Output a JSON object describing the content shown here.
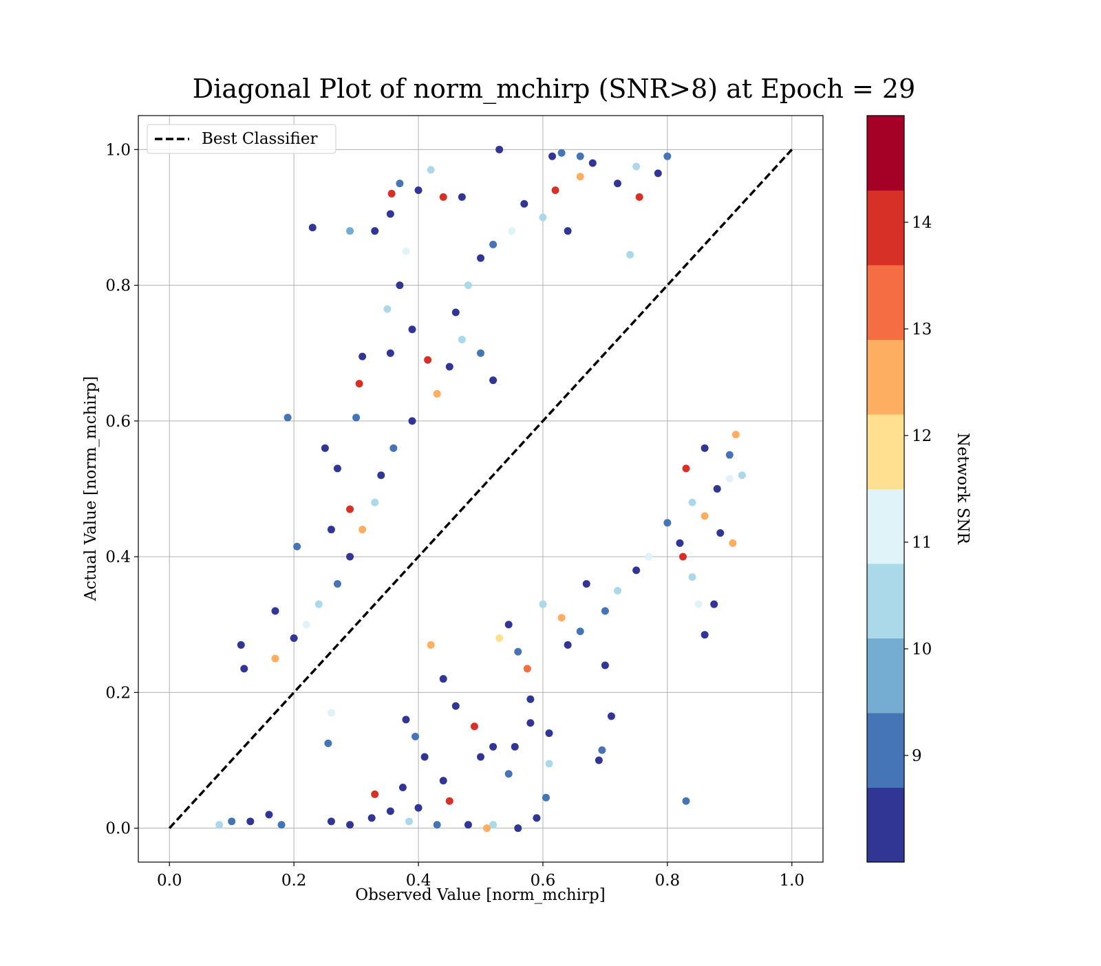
{
  "chart_data": {
    "type": "scatter",
    "title": "Diagonal Plot of norm_mchirp (SNR>8) at Epoch = 29",
    "xlabel": "Observed Value [norm_mchirp]",
    "ylabel": "Actual Value [norm_mchirp]",
    "xlim": [
      -0.05,
      1.05
    ],
    "ylim": [
      -0.05,
      1.05
    ],
    "xticks": [
      0.0,
      0.2,
      0.4,
      0.6,
      0.8,
      1.0
    ],
    "yticks": [
      0.0,
      0.2,
      0.4,
      0.6,
      0.8,
      1.0
    ],
    "xtick_labels": [
      "0.0",
      "0.2",
      "0.4",
      "0.6",
      "0.8",
      "1.0"
    ],
    "ytick_labels": [
      "0.0",
      "0.2",
      "0.4",
      "0.6",
      "0.8",
      "1.0"
    ],
    "grid": true,
    "legend": {
      "position": "top-left",
      "entries": [
        {
          "label": "Best Classifier",
          "style": "dashed",
          "color": "#000000"
        }
      ]
    },
    "reference_line": {
      "name": "Best Classifier",
      "x": [
        0.0,
        1.0
      ],
      "y": [
        0.0,
        1.0
      ],
      "color": "#000000",
      "style": "dashed"
    },
    "colorbar": {
      "label": "Network SNR",
      "range": [
        8,
        15
      ],
      "ticks": [
        9,
        10,
        11,
        12,
        13,
        14
      ],
      "tick_labels": [
        "9",
        "10",
        "11",
        "12",
        "13",
        "14"
      ],
      "bands": [
        {
          "from": 8.0,
          "to": 8.7,
          "color": "#313695"
        },
        {
          "from": 8.7,
          "to": 9.4,
          "color": "#4575b4"
        },
        {
          "from": 9.4,
          "to": 10.1,
          "color": "#74add1"
        },
        {
          "from": 10.1,
          "to": 10.8,
          "color": "#abd9e9"
        },
        {
          "from": 10.8,
          "to": 11.5,
          "color": "#e0f3f8"
        },
        {
          "from": 11.5,
          "to": 12.2,
          "color": "#fee090"
        },
        {
          "from": 12.2,
          "to": 12.9,
          "color": "#fdae61"
        },
        {
          "from": 12.9,
          "to": 13.6,
          "color": "#f46d43"
        },
        {
          "from": 13.6,
          "to": 14.3,
          "color": "#d73027"
        },
        {
          "from": 14.3,
          "to": 15.0,
          "color": "#a50026"
        }
      ]
    },
    "series": [
      {
        "colorby": "Network SNR",
        "points": [
          [
            0.23,
            0.885,
            8.2
          ],
          [
            0.29,
            0.88,
            10.0
          ],
          [
            0.33,
            0.88,
            8.3
          ],
          [
            0.357,
            0.935,
            13.8
          ],
          [
            0.37,
            0.95,
            9.1
          ],
          [
            0.355,
            0.905,
            8.4
          ],
          [
            0.4,
            0.94,
            8.1
          ],
          [
            0.42,
            0.97,
            10.2
          ],
          [
            0.44,
            0.93,
            13.9
          ],
          [
            0.47,
            0.93,
            8.5
          ],
          [
            0.38,
            0.85,
            11.2
          ],
          [
            0.37,
            0.8,
            8.3
          ],
          [
            0.35,
            0.765,
            10.4
          ],
          [
            0.39,
            0.735,
            8.2
          ],
          [
            0.415,
            0.69,
            13.7
          ],
          [
            0.39,
            0.6,
            8.4
          ],
          [
            0.305,
            0.655,
            13.6
          ],
          [
            0.31,
            0.695,
            8.2
          ],
          [
            0.355,
            0.7,
            8.1
          ],
          [
            0.3,
            0.605,
            9.0
          ],
          [
            0.19,
            0.605,
            9.2
          ],
          [
            0.25,
            0.56,
            8.3
          ],
          [
            0.27,
            0.53,
            8.1
          ],
          [
            0.29,
            0.47,
            13.8
          ],
          [
            0.26,
            0.44,
            8.3
          ],
          [
            0.205,
            0.415,
            9.0
          ],
          [
            0.17,
            0.32,
            8.2
          ],
          [
            0.115,
            0.27,
            8.3
          ],
          [
            0.12,
            0.235,
            8.5
          ],
          [
            0.53,
            1.0,
            8.2
          ],
          [
            0.615,
            0.99,
            8.3
          ],
          [
            0.63,
            0.995,
            9.0
          ],
          [
            0.66,
            0.99,
            9.3
          ],
          [
            0.68,
            0.98,
            8.2
          ],
          [
            0.75,
            0.975,
            10.3
          ],
          [
            0.755,
            0.93,
            13.7
          ],
          [
            0.72,
            0.95,
            8.4
          ],
          [
            0.74,
            0.845,
            10.6
          ],
          [
            0.785,
            0.965,
            8.2
          ],
          [
            0.8,
            0.99,
            9.1
          ],
          [
            0.825,
            0.4,
            13.8
          ],
          [
            0.84,
            0.37,
            10.7
          ],
          [
            0.85,
            0.33,
            11.2
          ],
          [
            0.875,
            0.33,
            8.3
          ],
          [
            0.86,
            0.285,
            8.4
          ],
          [
            0.905,
            0.42,
            12.4
          ],
          [
            0.885,
            0.435,
            8.3
          ],
          [
            0.9,
            0.515,
            11.4
          ],
          [
            0.83,
            0.04,
            9.2
          ],
          [
            0.7,
            0.24,
            8.2
          ],
          [
            0.71,
            0.165,
            8.3
          ],
          [
            0.695,
            0.115,
            9.1
          ],
          [
            0.69,
            0.1,
            8.2
          ],
          [
            0.61,
            0.095,
            10.4
          ],
          [
            0.605,
            0.045,
            9.2
          ],
          [
            0.59,
            0.015,
            8.1
          ],
          [
            0.52,
            0.005,
            10.3
          ],
          [
            0.51,
            0.0,
            12.6
          ],
          [
            0.575,
            0.235,
            13.5
          ],
          [
            0.58,
            0.19,
            8.3
          ],
          [
            0.64,
            0.27,
            8.2
          ],
          [
            0.66,
            0.29,
            9.1
          ],
          [
            0.61,
            0.14,
            8.2
          ],
          [
            0.58,
            0.155,
            8.3
          ],
          [
            0.555,
            0.12,
            8.2
          ],
          [
            0.545,
            0.08,
            9.2
          ],
          [
            0.52,
            0.12,
            8.4
          ],
          [
            0.45,
            0.04,
            13.9
          ],
          [
            0.44,
            0.07,
            8.3
          ],
          [
            0.41,
            0.105,
            8.2
          ],
          [
            0.395,
            0.135,
            9.2
          ],
          [
            0.38,
            0.16,
            8.1
          ],
          [
            0.33,
            0.05,
            13.6
          ],
          [
            0.255,
            0.125,
            9.1
          ],
          [
            0.26,
            0.17,
            11.3
          ],
          [
            0.42,
            0.27,
            12.5
          ],
          [
            0.44,
            0.22,
            8.3
          ],
          [
            0.46,
            0.18,
            8.4
          ],
          [
            0.49,
            0.15,
            13.7
          ],
          [
            0.5,
            0.105,
            8.2
          ],
          [
            0.325,
            0.015,
            8.3
          ],
          [
            0.355,
            0.025,
            8.1
          ],
          [
            0.375,
            0.06,
            8.2
          ],
          [
            0.385,
            0.01,
            10.5
          ],
          [
            0.4,
            0.03,
            8.3
          ],
          [
            0.56,
            0.0,
            8.4
          ],
          [
            0.48,
            0.005,
            8.2
          ],
          [
            0.43,
            0.005,
            9.0
          ],
          [
            0.29,
            0.005,
            8.2
          ],
          [
            0.26,
            0.01,
            8.3
          ],
          [
            0.18,
            0.005,
            9.1
          ],
          [
            0.16,
            0.02,
            8.4
          ],
          [
            0.13,
            0.01,
            8.3
          ],
          [
            0.1,
            0.01,
            9.2
          ],
          [
            0.08,
            0.005,
            10.3
          ],
          [
            0.53,
            0.28,
            11.5
          ],
          [
            0.545,
            0.3,
            8.2
          ],
          [
            0.56,
            0.26,
            9.1
          ],
          [
            0.6,
            0.33,
            10.5
          ],
          [
            0.63,
            0.31,
            12.6
          ],
          [
            0.67,
            0.36,
            8.3
          ],
          [
            0.7,
            0.32,
            9.2
          ],
          [
            0.72,
            0.35,
            10.4
          ],
          [
            0.75,
            0.38,
            8.3
          ],
          [
            0.77,
            0.4,
            11.3
          ],
          [
            0.8,
            0.45,
            9.2
          ],
          [
            0.82,
            0.42,
            8.4
          ],
          [
            0.84,
            0.48,
            10.4
          ],
          [
            0.86,
            0.46,
            12.4
          ],
          [
            0.88,
            0.5,
            8.3
          ],
          [
            0.9,
            0.55,
            9.1
          ],
          [
            0.92,
            0.52,
            10.6
          ],
          [
            0.86,
            0.56,
            8.2
          ],
          [
            0.83,
            0.53,
            13.6
          ],
          [
            0.91,
            0.58,
            12.3
          ],
          [
            0.52,
            0.66,
            8.2
          ],
          [
            0.5,
            0.7,
            9.1
          ],
          [
            0.47,
            0.72,
            10.4
          ],
          [
            0.45,
            0.68,
            8.3
          ],
          [
            0.43,
            0.64,
            12.4
          ],
          [
            0.46,
            0.76,
            8.4
          ],
          [
            0.48,
            0.8,
            10.3
          ],
          [
            0.5,
            0.84,
            8.2
          ],
          [
            0.52,
            0.86,
            9.2
          ],
          [
            0.55,
            0.88,
            11.3
          ],
          [
            0.57,
            0.92,
            8.3
          ],
          [
            0.6,
            0.9,
            10.6
          ],
          [
            0.62,
            0.94,
            13.6
          ],
          [
            0.64,
            0.88,
            8.3
          ],
          [
            0.66,
            0.96,
            12.4
          ],
          [
            0.36,
            0.56,
            9.2
          ],
          [
            0.34,
            0.52,
            8.3
          ],
          [
            0.33,
            0.48,
            10.5
          ],
          [
            0.31,
            0.44,
            12.4
          ],
          [
            0.29,
            0.4,
            8.2
          ],
          [
            0.27,
            0.36,
            9.1
          ],
          [
            0.24,
            0.33,
            10.3
          ],
          [
            0.22,
            0.3,
            11.4
          ],
          [
            0.2,
            0.28,
            8.4
          ],
          [
            0.17,
            0.25,
            12.6
          ]
        ]
      }
    ]
  }
}
